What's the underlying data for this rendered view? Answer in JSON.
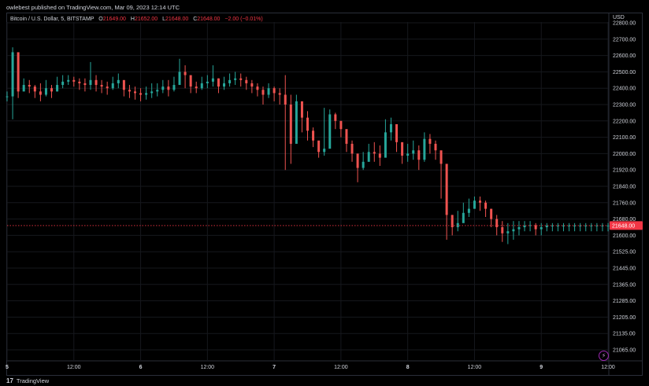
{
  "header": {
    "publisher": "owlebest published on TradingView.com, Mar 09, 2023 12:14 UTC"
  },
  "legend": {
    "symbol": "Bitcoin / U.S. Dollar, 5, BITSTAMP",
    "o_label": "O",
    "o_value": "21649.00",
    "h_label": "H",
    "h_value": "21652.00",
    "l_label": "L",
    "l_value": "21648.00",
    "c_label": "C",
    "c_value": "21648.00",
    "change": "−2.00 (−0.01%)"
  },
  "currency": "USD",
  "last_price_tag": "21648.00",
  "footer": {
    "brand": "TradingView",
    "logo": "17"
  },
  "icons": {
    "bolt": "lightning-icon"
  },
  "colors": {
    "up": "#26a69a",
    "down": "#ef5350",
    "price_line": "#f23645",
    "grid": "#16181d"
  },
  "chart_data": {
    "type": "line",
    "title": "Bitcoin / U.S. Dollar, 5, BITSTAMP",
    "xlabel": "",
    "ylabel": "",
    "y_tick_labels": [
      "22800.00",
      "22700.00",
      "22600.00",
      "22500.00",
      "22400.00",
      "22300.00",
      "22200.00",
      "22100.00",
      "22000.00",
      "21920.00",
      "21840.00",
      "21760.00",
      "21680.00",
      "21600.00",
      "21525.00",
      "21445.00",
      "21365.00",
      "21285.00",
      "21205.00",
      "21135.00",
      "21065.00"
    ],
    "y_tick_values": [
      22800,
      22700,
      22600,
      22500,
      22400,
      22300,
      22200,
      22100,
      22000,
      21920,
      21840,
      21760,
      21680,
      21600,
      21525,
      21445,
      21365,
      21285,
      21205,
      21135,
      21065
    ],
    "x_tick_labels": [
      "5",
      "12:00",
      "6",
      "12:00",
      "7",
      "12:00",
      "8",
      "12:00",
      "9",
      "12:00"
    ],
    "x_tick_values": [
      0,
      12,
      24,
      36,
      48,
      60,
      72,
      84,
      96,
      108
    ],
    "x_unit": "hours since start of Mar 5",
    "ylim": [
      21030,
      22830
    ],
    "xlim": [
      0,
      108
    ],
    "grid": true,
    "series": [
      {
        "name": "",
        "x": [
          0,
          1,
          2,
          3,
          4,
          5,
          6,
          7,
          8,
          9,
          10,
          11,
          12,
          13,
          14,
          15,
          16,
          17,
          18,
          19,
          20,
          21,
          22,
          23,
          24,
          25,
          26,
          27,
          28,
          29,
          30,
          31,
          32,
          33,
          34,
          35,
          36,
          37,
          38,
          39,
          40,
          41,
          42,
          43,
          44,
          45,
          46,
          47,
          48,
          49,
          50,
          51,
          52,
          53,
          54,
          55,
          56,
          57,
          58,
          59,
          60,
          61,
          62,
          63,
          64,
          65,
          66,
          67,
          68,
          69,
          70,
          71,
          72,
          73,
          74,
          75,
          76,
          77,
          78,
          79,
          80,
          81,
          82,
          83,
          84,
          85,
          86,
          87,
          88,
          89,
          90,
          91,
          92,
          93,
          94,
          95,
          96,
          97,
          98,
          99,
          100,
          101,
          102,
          103,
          104,
          105,
          106,
          107,
          108
        ],
        "values": [
          22350,
          22620,
          22380,
          22420,
          22410,
          22380,
          22360,
          22400,
          22380,
          22420,
          22440,
          22450,
          22440,
          22430,
          22420,
          22450,
          22420,
          22410,
          22400,
          22430,
          22450,
          22390,
          22380,
          22370,
          22360,
          22370,
          22380,
          22390,
          22410,
          22390,
          22420,
          22500,
          22480,
          22410,
          22400,
          22430,
          22440,
          22460,
          22410,
          22430,
          22450,
          22460,
          22450,
          22430,
          22410,
          22390,
          22360,
          22400,
          22370,
          22360,
          22300,
          22060,
          22320,
          22220,
          22140,
          22080,
          22010,
          22030,
          22240,
          22200,
          22150,
          22060,
          22000,
          21930,
          21960,
          22010,
          22000,
          21980,
          22130,
          22180,
          22070,
          21990,
          22000,
          22020,
          21970,
          22090,
          22060,
          22020,
          21950,
          21700,
          21640,
          21660,
          21710,
          21730,
          21770,
          21760,
          21730,
          21680,
          21640,
          21610,
          21620,
          21630,
          21640,
          21648,
          21650,
          21630,
          21640,
          21648,
          21648,
          21648,
          21648,
          21648,
          21648,
          21648,
          21648,
          21648,
          21648,
          21648,
          21648
        ],
        "highs": [
          22380,
          22650,
          22460,
          22460,
          22450,
          22420,
          22430,
          22450,
          22420,
          22470,
          22480,
          22480,
          22470,
          22460,
          22460,
          22560,
          22480,
          22450,
          22440,
          22470,
          22490,
          22430,
          22420,
          22410,
          22400,
          22410,
          22430,
          22430,
          22450,
          22450,
          22470,
          22580,
          22540,
          22460,
          22440,
          22470,
          22480,
          22540,
          22460,
          22470,
          22490,
          22500,
          22490,
          22470,
          22450,
          22430,
          22410,
          22430,
          22410,
          22400,
          22480,
          22360,
          22360,
          22290,
          22260,
          22160,
          22070,
          22280,
          22270,
          22250,
          22200,
          22120,
          22080,
          22000,
          22010,
          22060,
          22070,
          22050,
          22210,
          22220,
          22140,
          22060,
          22060,
          22080,
          22050,
          22130,
          22120,
          22080,
          22010,
          21760,
          21700,
          21720,
          21760,
          21780,
          21790,
          21790,
          21770,
          21730,
          21700,
          21670,
          21660,
          21670,
          21670,
          21670,
          21670,
          21660,
          21660,
          21660,
          21660,
          21660,
          21660,
          21660,
          21660,
          21660,
          21660,
          21660,
          21660,
          21660,
          21660
        ],
        "lows": [
          22320,
          22210,
          22340,
          22380,
          22370,
          22340,
          22320,
          22350,
          22340,
          22380,
          22400,
          22420,
          22410,
          22390,
          22380,
          22390,
          22380,
          22370,
          22360,
          22390,
          22400,
          22350,
          22340,
          22330,
          22320,
          22330,
          22340,
          22350,
          22370,
          22350,
          22380,
          22440,
          22400,
          22370,
          22370,
          22390,
          22400,
          22410,
          22370,
          22390,
          22410,
          22420,
          22410,
          22390,
          22370,
          22350,
          22300,
          22340,
          22320,
          22300,
          21920,
          21950,
          22180,
          22130,
          22080,
          22040,
          21980,
          21990,
          22150,
          22150,
          22100,
          22010,
          21960,
          21860,
          21920,
          21960,
          21960,
          21940,
          22080,
          22080,
          22010,
          21950,
          21960,
          21970,
          21920,
          21960,
          22000,
          21970,
          21780,
          21580,
          21600,
          21620,
          21670,
          21690,
          21730,
          21720,
          21690,
          21640,
          21600,
          21570,
          21560,
          21580,
          21600,
          21620,
          21620,
          21600,
          21600,
          21620,
          21620,
          21620,
          21620,
          21620,
          21620,
          21620,
          21620,
          21620,
          21620,
          21620,
          21620
        ]
      }
    ],
    "last_price": 21648.0
  }
}
